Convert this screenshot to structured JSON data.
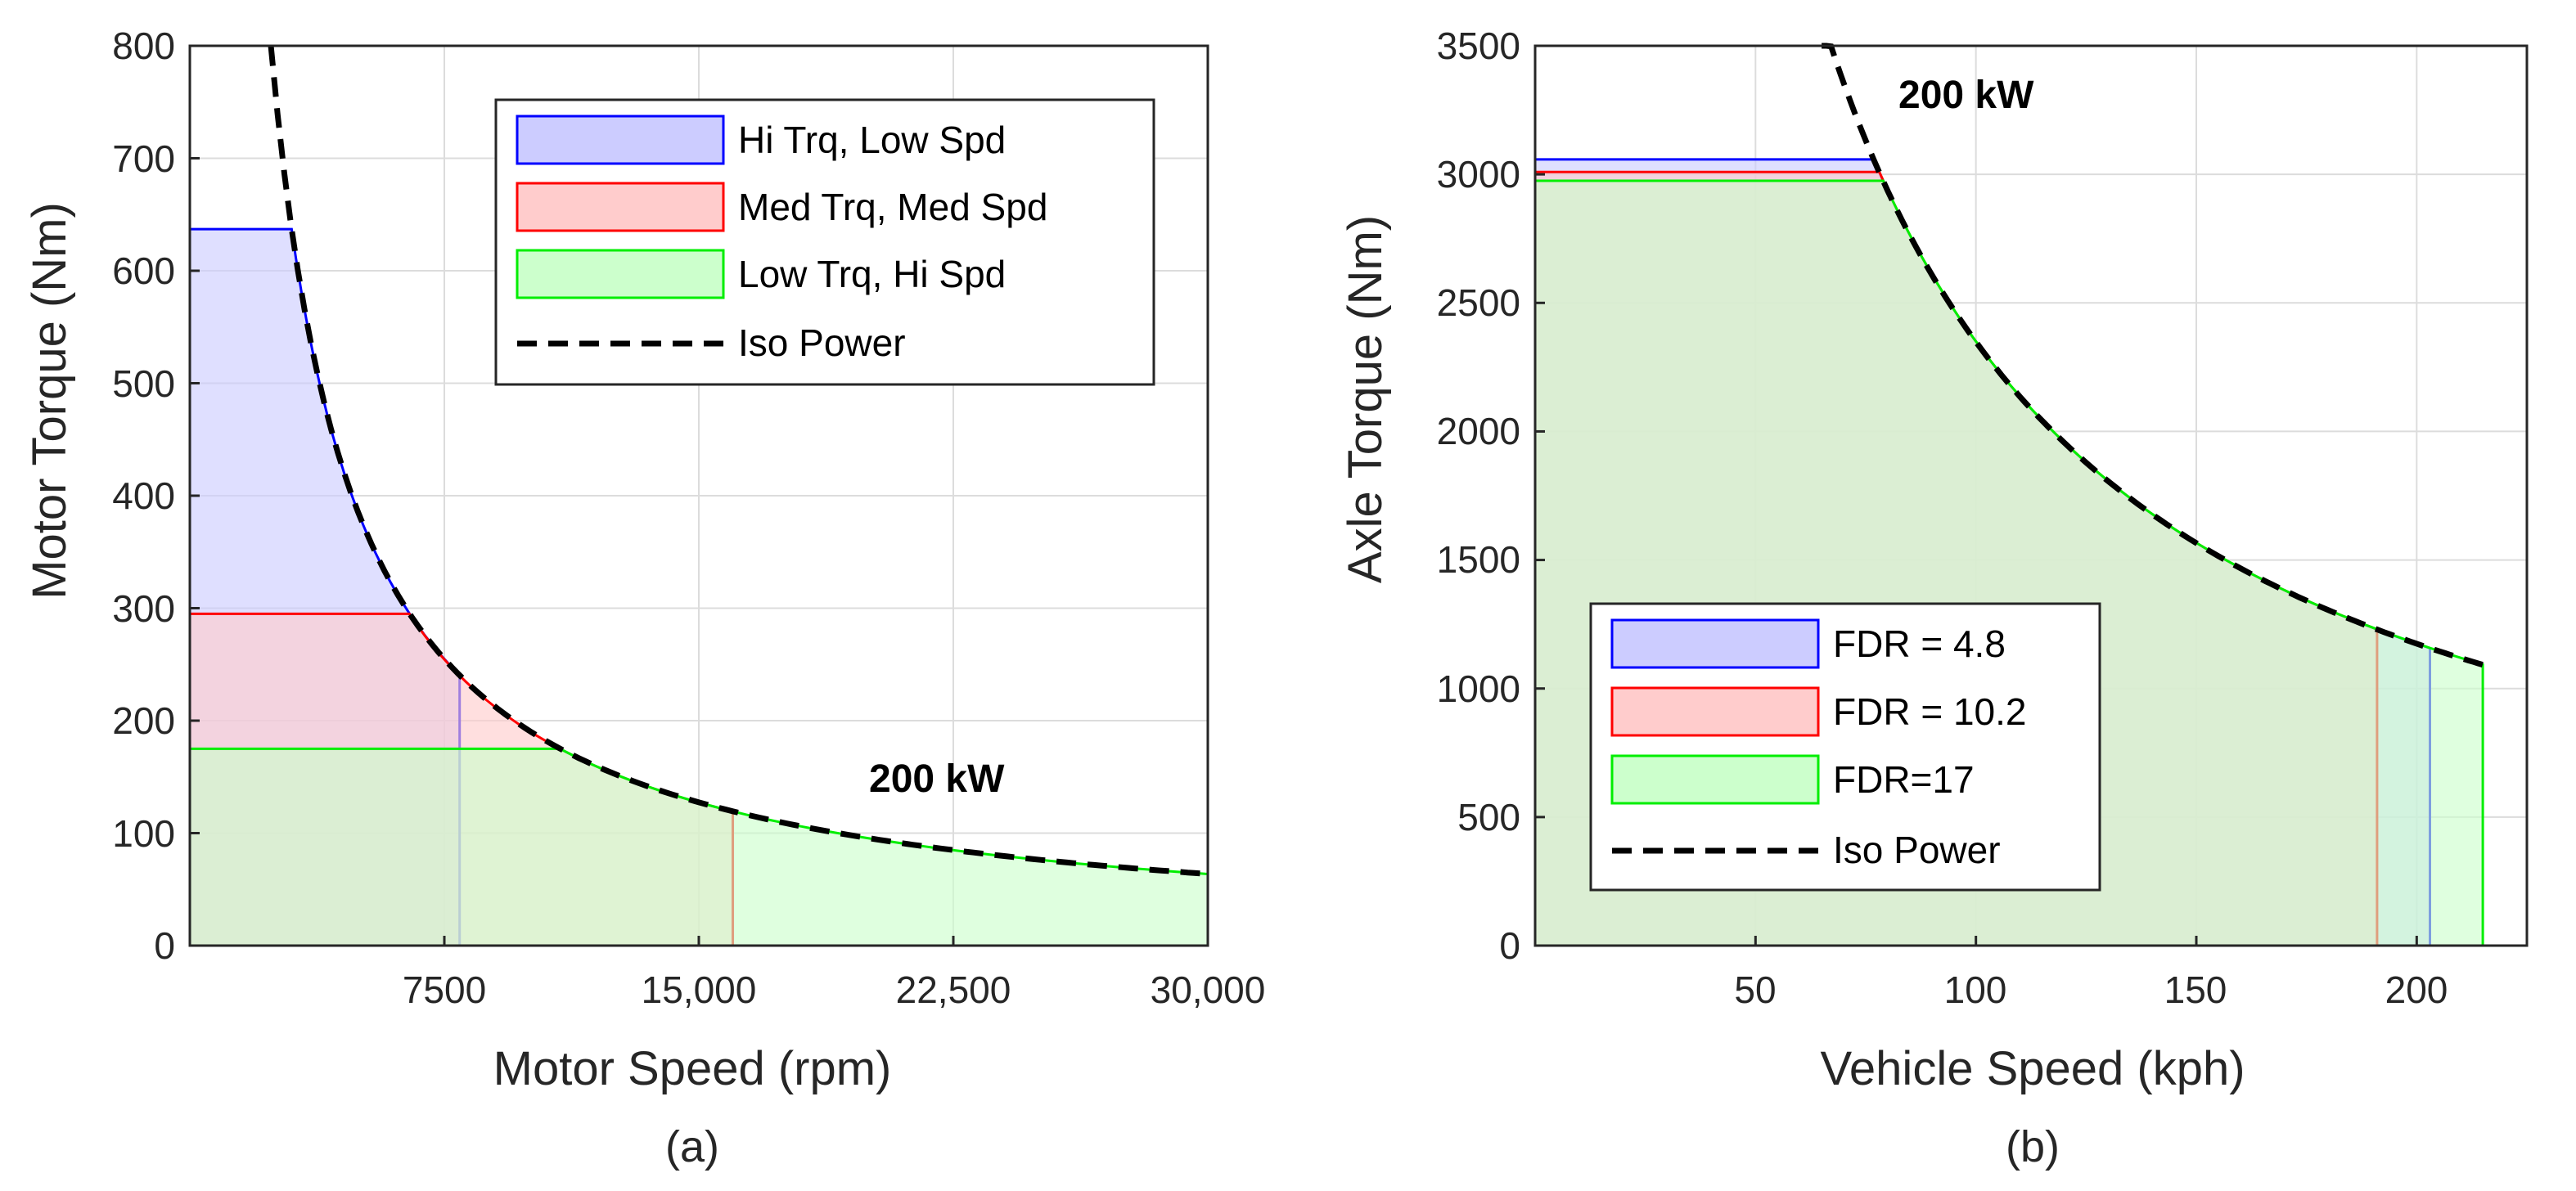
{
  "colors": {
    "blue": "#0000ff",
    "blue_fill": "#ccccff",
    "red": "#ff0000",
    "red_fill": "#ffcccc",
    "green": "#00ee00",
    "green_fill": "#ccffcc",
    "iso": "#000000",
    "axis": "#262626",
    "grid": "#dcdcdc"
  },
  "chart_data": [
    {
      "type": "area",
      "caption": "(a)",
      "title": "",
      "xlabel": "Motor Speed (rpm)",
      "ylabel": "Motor Torque (Nm)",
      "xlim": [
        0,
        30000
      ],
      "ylim": [
        0,
        800
      ],
      "xticks": [
        7500,
        15000,
        22500,
        30000
      ],
      "xtick_labels": [
        "7500",
        "15,000",
        "22,500",
        "30,000"
      ],
      "yticks": [
        0,
        100,
        200,
        300,
        400,
        500,
        600,
        700,
        800
      ],
      "ytick_labels": [
        "0",
        "100",
        "200",
        "300",
        "400",
        "500",
        "600",
        "700",
        "800"
      ],
      "grid": true,
      "legend_position": "top-right",
      "iso_power_kw": 200,
      "annotation": "200 kW",
      "series": [
        {
          "name": "Hi Trq, Low Spd",
          "color": "blue",
          "max_torque": 637,
          "base_speed": 3000,
          "max_speed": 7950
        },
        {
          "name": "Med Trq, Med Spd",
          "color": "red",
          "max_torque": 295,
          "base_speed": 6470,
          "max_speed": 16000
        },
        {
          "name": "Low Trq, Hi Spd",
          "color": "green",
          "max_torque": 175,
          "base_speed": 10910,
          "max_speed": 30000
        }
      ],
      "iso_curve": {
        "name": "Iso Power",
        "x_start": 2390,
        "x_end": 30000
      }
    },
    {
      "type": "area",
      "caption": "(b)",
      "title": "",
      "xlabel": "Vehicle Speed (kph)",
      "ylabel": "Axle Torque (Nm)",
      "xlim": [
        0,
        225
      ],
      "ylim": [
        0,
        3500
      ],
      "xticks": [
        50,
        100,
        150,
        200
      ],
      "xtick_labels": [
        "50",
        "100",
        "150",
        "200"
      ],
      "yticks": [
        0,
        500,
        1000,
        1500,
        2000,
        2500,
        3000,
        3500
      ],
      "ytick_labels": [
        "0",
        "500",
        "1000",
        "1500",
        "2000",
        "2500",
        "3000",
        "3500"
      ],
      "grid": true,
      "legend_position": "bottom-left",
      "iso_power_kw": 200,
      "annotation": "200 kW",
      "series": [
        {
          "name": "FDR = 4.8",
          "color": "blue",
          "max_torque": 3058,
          "base_speed": 76.8,
          "max_speed": 203
        },
        {
          "name": "FDR = 10.2",
          "color": "red",
          "max_torque": 3009,
          "base_speed": 78.1,
          "max_speed": 191
        },
        {
          "name": "FDR=17",
          "color": "green",
          "max_torque": 2975,
          "base_speed": 79.0,
          "max_speed": 215
        }
      ],
      "iso_curve": {
        "name": "Iso Power",
        "x_start": 65,
        "x_end": 215
      }
    }
  ]
}
